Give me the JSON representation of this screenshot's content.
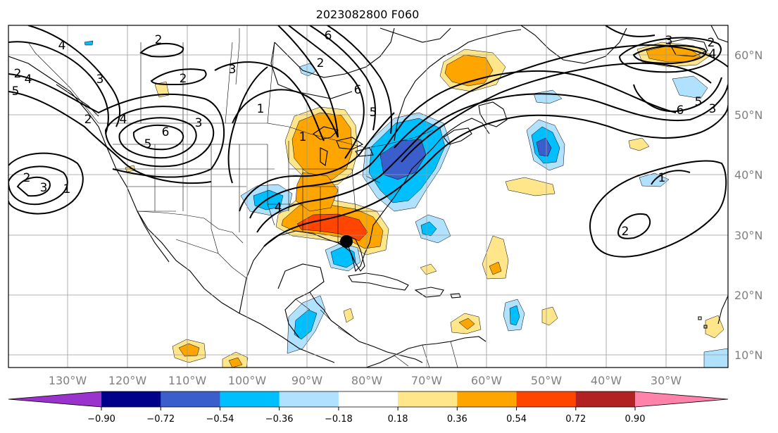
{
  "title": "2023082800 F060",
  "lon_labels": [
    "130°W",
    "120°W",
    "110°W",
    "100°W",
    "90°W",
    "80°W",
    "70°W",
    "60°W",
    "50°W",
    "40°W",
    "30°W"
  ],
  "lat_labels": [
    "60°N",
    "50°N",
    "40°N",
    "30°N",
    "20°N",
    "10°N"
  ],
  "colorbar": {
    "ticks": [
      "−0.90",
      "−0.72",
      "−0.54",
      "−0.36",
      "−0.18",
      "0.18",
      "0.36",
      "0.54",
      "0.72",
      "0.90"
    ],
    "colors": [
      "#9a32cd",
      "#00008b",
      "#3a5fcd",
      "#00bfff",
      "#b0e2ff",
      "#ffffff",
      "#ffe68a",
      "#ffa500",
      "#ff4500",
      "#b22222",
      "#ff82ab"
    ]
  },
  "contour_labels": [
    "2",
    "2",
    "2",
    "4",
    "3",
    "5",
    "4",
    "6",
    "5",
    "4",
    "2",
    "3",
    "1",
    "3",
    "2",
    "6",
    "1",
    "4",
    "6",
    "5",
    "3",
    "2",
    "2",
    "3",
    "4",
    "6",
    "3",
    "5",
    "1",
    "2",
    "1"
  ],
  "marker": {
    "type": "black-dot"
  }
}
